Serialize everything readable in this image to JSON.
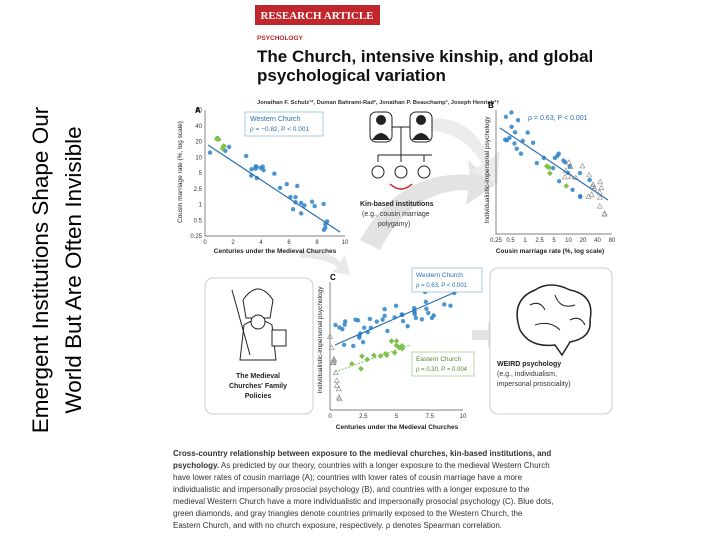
{
  "slide_title": [
    "Emergent Institutions Shape Our",
    "World But Are Often Invisible"
  ],
  "article": {
    "banner": "RESEARCH ARTICLE",
    "section": "PSYCHOLOGY",
    "title": [
      "The Church, intensive kinship, and global",
      "psychological variation"
    ],
    "authors": "Jonathan F. Schulz¹*, Duman Bahrami-Rad², Jonathan P. Beauchamp³, Joseph Henrich²†"
  },
  "figure": {
    "panel_a": {
      "letter": "A",
      "ylabel": "Cousin marriage rate (%, log scale)",
      "yticks": [
        "80",
        "40",
        "20",
        "10",
        "5",
        "2.5",
        "1",
        "0.5",
        "0.25"
      ],
      "xticks": [
        "0",
        "2",
        "4",
        "6",
        "8",
        "10"
      ],
      "xlabel": "Centuries under the Medieval Churches",
      "legend": [
        "Western Church",
        "ρ = −0.82, P < 0.001"
      ]
    },
    "panel_b": {
      "letter": "B",
      "ylabel": "Individualistic-impersonal psychology",
      "xticks": [
        "0.25",
        "0.5",
        "1",
        "2.5",
        "5",
        "10",
        "20",
        "40",
        "80"
      ],
      "xlabel": "Cousin marriage rate (%, log scale)",
      "legend": [
        "ρ = 0.63, P < 0.001"
      ]
    },
    "panel_c": {
      "letter": "C",
      "ylabel": "Individualistic-impersonal psychology",
      "xticks": [
        "0",
        "2.5",
        "5",
        "7.5",
        "10"
      ],
      "xlabel": "Centuries under the Medieval Churches",
      "legend_west": [
        "Western Church",
        "ρ = 0.63, P < 0.001"
      ],
      "legend_east": [
        "Eastern Church",
        "ρ = 0.30, P = 0.004"
      ]
    },
    "kin_box": [
      "Kin-based institutions",
      "(e.g., cousin marriage",
      "polygamy)"
    ],
    "church_box": [
      "The Medieval",
      "Churches' Family",
      "Policies"
    ],
    "weird_box": [
      "WEIRD psychology",
      "(e.g., individualism,",
      "impersonal prosociality)"
    ]
  },
  "caption": {
    "lead": [
      "Cross-country relationship between exposure to the medieval churches, kin-based institutions, and",
      "psychology."
    ],
    "lines": [
      "As predicted by our theory, countries with a longer exposure to the medieval Western Church",
      "have lower rates of cousin marriage (A); countries with lower rates of cousin marriage have a more",
      "individualistic and impersonally prosocial psychology (B), and countries with a longer exposure to the",
      "medieval Western Church have a more individualistic and impersonally prosocial psychology (C). Blue dots,",
      "green diamonds, and gray triangles denote countries primarily exposed to the Western Church, the",
      "Eastern Church, and with no church exposure, respectively. ρ denotes Spearman correlation."
    ]
  }
}
